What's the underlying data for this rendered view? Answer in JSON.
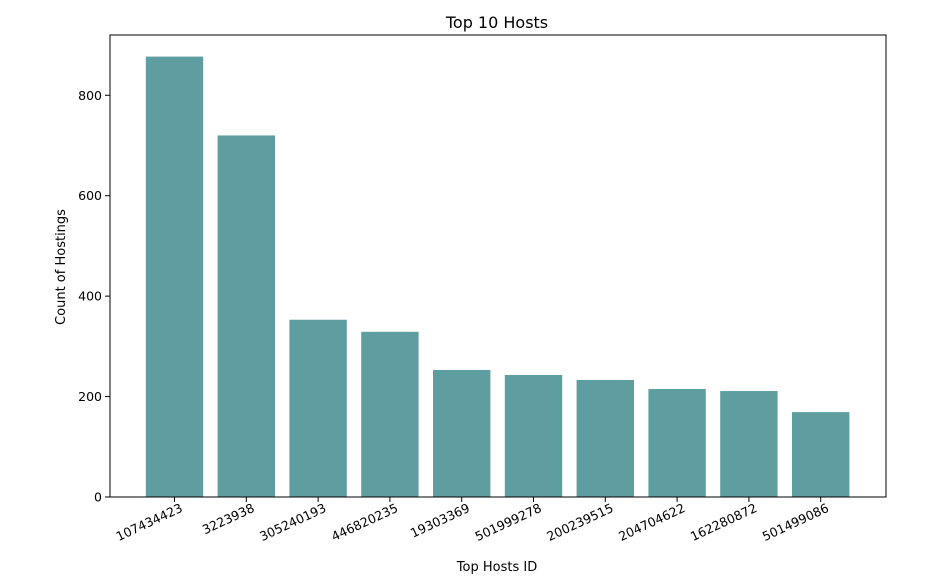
{
  "chart_data": {
    "type": "bar",
    "title": "Top 10 Hosts",
    "xlabel": "Top Hosts ID",
    "ylabel": "Count of Hostings",
    "categories": [
      "107434423",
      "3223938",
      "305240193",
      "446820235",
      "19303369",
      "501999278",
      "200239515",
      "204704622",
      "162280872",
      "501499086"
    ],
    "values": [
      877,
      720,
      353,
      329,
      253,
      243,
      233,
      215,
      211,
      169
    ],
    "ylim": [
      0,
      920
    ],
    "yticks": [
      0,
      200,
      400,
      600,
      800
    ],
    "grid": false,
    "bar_color": "#5f9ea0"
  }
}
